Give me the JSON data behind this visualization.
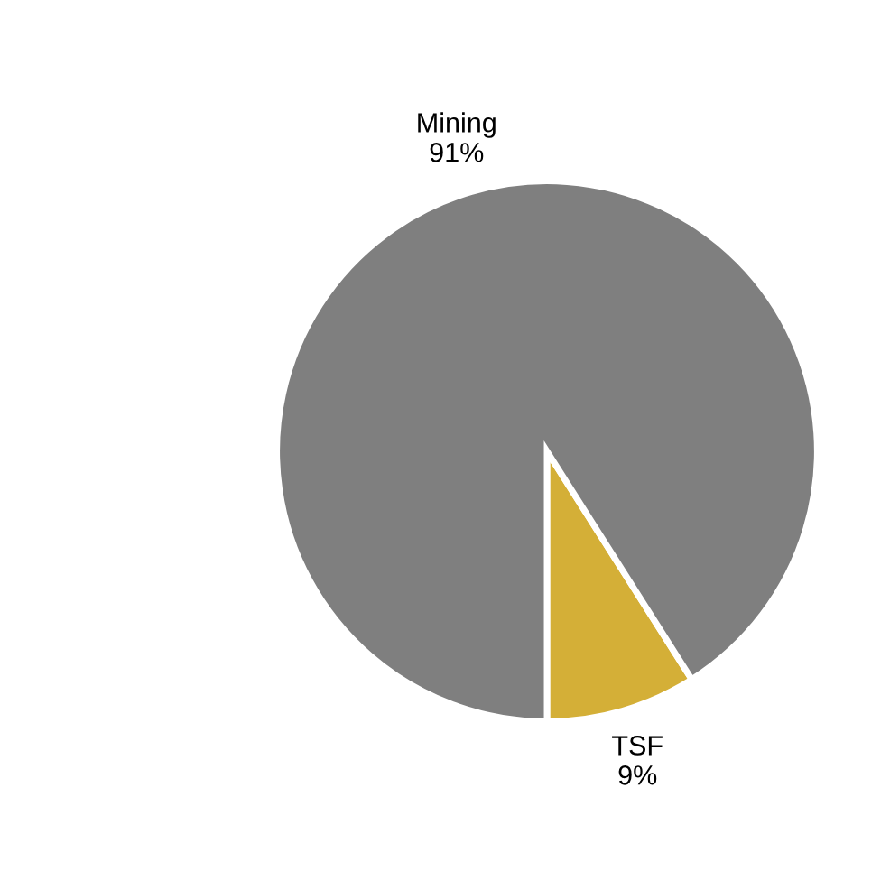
{
  "chart_data": {
    "type": "pie",
    "categories": [
      "TSF",
      "Mining"
    ],
    "values": [
      9,
      91
    ],
    "value_labels": [
      "9%",
      "91%"
    ],
    "colors": [
      "#d4af37",
      "#7f7f7f"
    ],
    "legend": false
  }
}
